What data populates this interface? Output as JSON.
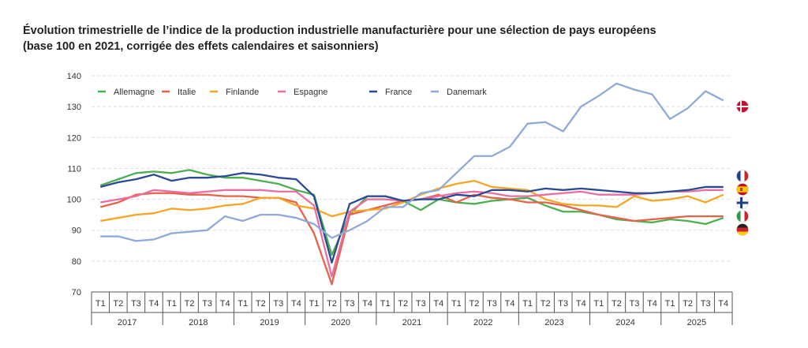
{
  "chart_data": {
    "type": "line",
    "title": "Évolution trimestrielle de l’indice de la production industrielle manufacturière pour une sélection de pays européens",
    "subtitle": "(base 100 en 2021, corrigée des effets calendaires et saisonniers)",
    "xlabel": "",
    "ylabel": "",
    "ylim": [
      70,
      140
    ],
    "yticks": [
      70,
      80,
      90,
      100,
      110,
      120,
      130,
      140
    ],
    "grid": true,
    "legend_position": "top-left",
    "quarters": [
      "T1",
      "T2",
      "T3",
      "T4"
    ],
    "years": [
      "2017",
      "2018",
      "2019",
      "2020",
      "2021",
      "2022",
      "2023",
      "2024",
      "2025"
    ],
    "series": [
      {
        "name": "Allemagne",
        "color": "#4caf50",
        "flag": "germany-flag",
        "values": [
          104.5,
          106.5,
          108.5,
          109,
          108.5,
          109.5,
          108,
          107,
          107,
          106,
          105,
          103,
          101.5,
          82,
          95,
          101,
          101,
          99.5,
          96.5,
          100,
          99,
          98.5,
          99.5,
          100,
          100.5,
          98,
          96,
          96,
          95,
          93.5,
          93,
          92.5,
          93.5,
          93,
          92,
          94
        ]
      },
      {
        "name": "Italie",
        "color": "#e8624a",
        "flag": "italy-flag",
        "values": [
          97.5,
          99,
          101.5,
          102,
          102,
          101.5,
          101.5,
          101,
          101,
          100.5,
          100.5,
          99,
          89,
          72.5,
          95,
          96.5,
          98,
          99.5,
          100,
          101.5,
          99,
          101.5,
          100.5,
          100,
          99,
          99,
          98,
          96.5,
          95,
          94,
          93,
          93.5,
          94,
          94.5,
          94.5,
          94.5
        ]
      },
      {
        "name": "Finlande",
        "color": "#f5a623",
        "flag": "finland-flag",
        "values": [
          93,
          94,
          95,
          95.5,
          97,
          96.5,
          97,
          98,
          98.5,
          100.5,
          100.5,
          98,
          97,
          94.5,
          96,
          96.5,
          97,
          99,
          101.5,
          103.5,
          105,
          106,
          104,
          103.5,
          103,
          100,
          98.5,
          98,
          98,
          97.5,
          101,
          99.5,
          100,
          101,
          99,
          101.5
        ]
      },
      {
        "name": "Espagne",
        "color": "#e96fa3",
        "flag": "spain-flag",
        "values": [
          99,
          100,
          101,
          103,
          102.5,
          102,
          102.5,
          103,
          103,
          103,
          102.5,
          102.5,
          98,
          75,
          96,
          100,
          100,
          99.5,
          100,
          101,
          102,
          102.5,
          102,
          101,
          101,
          101.5,
          102,
          102.5,
          101.5,
          101.5,
          101.5,
          102,
          102.5,
          102.5,
          103,
          103
        ]
      },
      {
        "name": "France",
        "color": "#2a4a94",
        "flag": "france-flag",
        "values": [
          104,
          105.5,
          106.5,
          108,
          106,
          107,
          107,
          107.5,
          108.5,
          108,
          107,
          106.5,
          101,
          79.5,
          98.5,
          101,
          101,
          99.5,
          100,
          100,
          101.5,
          101,
          103,
          103,
          102.5,
          103.5,
          103,
          103.5,
          103,
          102.5,
          102,
          102,
          102.5,
          103,
          104,
          104
        ]
      },
      {
        "name": "Danemark",
        "color": "#8eaad8",
        "flag": "denmark-flag",
        "values": [
          88,
          88,
          86.5,
          87,
          89,
          89.5,
          90,
          94.5,
          93,
          95,
          95,
          94,
          92,
          87.5,
          90,
          93,
          97.5,
          97.5,
          102,
          103,
          108.5,
          114,
          114,
          117,
          124.5,
          125,
          122,
          130,
          133.5,
          137.5,
          135.5,
          134,
          126,
          129.5,
          135,
          132
        ]
      }
    ]
  }
}
